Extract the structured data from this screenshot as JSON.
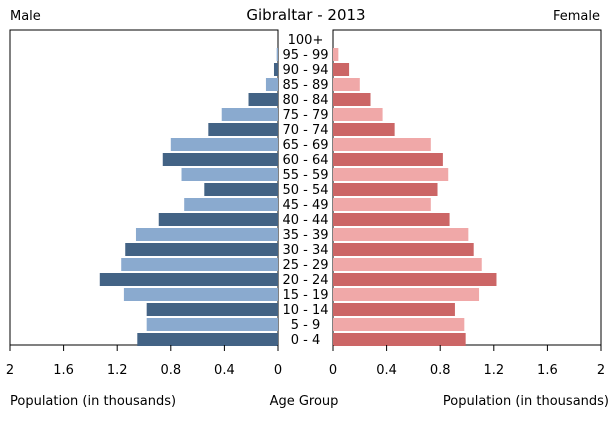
{
  "chart_data": {
    "type": "bar",
    "title": "Gibraltar - 2013",
    "left_label": "Male",
    "right_label": "Female",
    "xlabel_left": "Population (in thousands)",
    "xlabel_center": "Age Group",
    "xlabel_right": "Population (in thousands)",
    "xlim": [
      0,
      2
    ],
    "ticks": [
      {
        "value": 2,
        "label": "2"
      },
      {
        "value": 1.6,
        "label": "1.6"
      },
      {
        "value": 1.2,
        "label": "1.2"
      },
      {
        "value": 0.8,
        "label": "0.8"
      },
      {
        "value": 0.4,
        "label": "0.4"
      },
      {
        "value": 0,
        "label": "0"
      }
    ],
    "categories": [
      "100+",
      "95 - 99",
      "90 - 94",
      "85 - 89",
      "80 - 84",
      "75 - 79",
      "70 - 74",
      "65 - 69",
      "60 - 64",
      "55 - 59",
      "50 - 54",
      "45 - 49",
      "40 - 44",
      "35 - 39",
      "30 - 34",
      "25 - 29",
      "20 - 24",
      "15 - 19",
      "10 - 14",
      "5 - 9",
      "0 - 4"
    ],
    "series": [
      {
        "name": "Male",
        "values": [
          0,
          0.01,
          0.03,
          0.09,
          0.22,
          0.42,
          0.52,
          0.8,
          0.86,
          0.72,
          0.55,
          0.7,
          0.89,
          1.06,
          1.14,
          1.17,
          1.33,
          1.15,
          0.98,
          0.98,
          1.05
        ]
      },
      {
        "name": "Female",
        "values": [
          0,
          0.04,
          0.12,
          0.2,
          0.28,
          0.37,
          0.46,
          0.73,
          0.82,
          0.86,
          0.78,
          0.73,
          0.87,
          1.01,
          1.05,
          1.11,
          1.22,
          1.09,
          0.91,
          0.98,
          0.99
        ]
      }
    ],
    "colors": {
      "male_dark": "#436385",
      "male_light": "#8aaacf",
      "female_dark": "#cc6666",
      "female_light": "#f0a8a8"
    }
  }
}
